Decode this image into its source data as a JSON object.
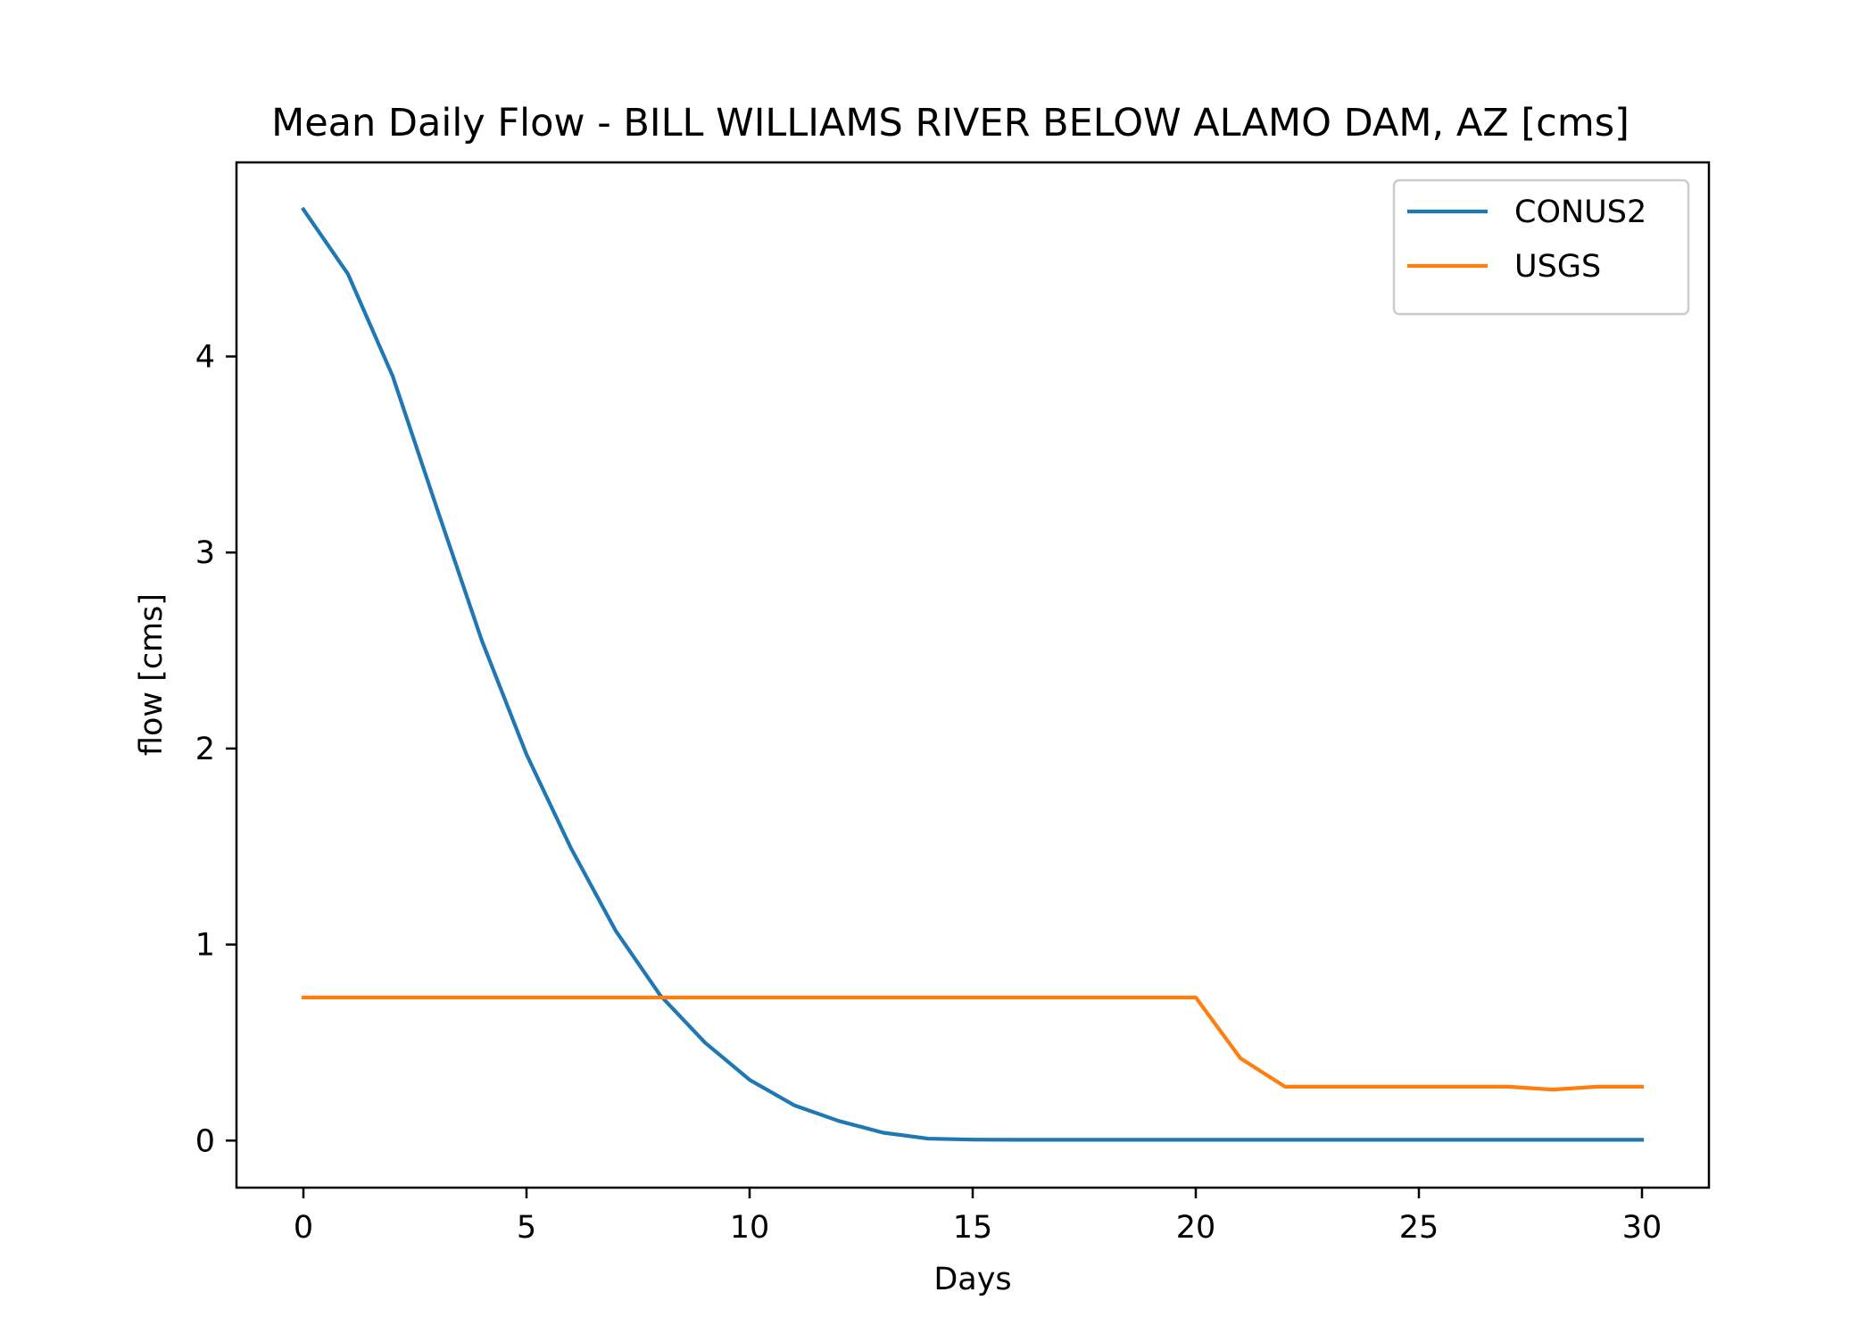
{
  "chart_data": {
    "type": "line",
    "title": "Mean Daily Flow - BILL WILLIAMS RIVER BELOW ALAMO DAM, AZ [cms]",
    "xlabel": "Days",
    "ylabel": "flow [cms]",
    "xlim": [
      -1.5,
      31.5
    ],
    "ylim": [
      -0.24,
      4.99
    ],
    "xticks": [
      0,
      5,
      10,
      15,
      20,
      25,
      30
    ],
    "yticks": [
      0,
      1,
      2,
      3,
      4
    ],
    "xtick_labels": [
      "0",
      "5",
      "10",
      "15",
      "20",
      "25",
      "30"
    ],
    "ytick_labels": [
      "0",
      "1",
      "2",
      "3",
      "4"
    ],
    "grid": false,
    "legend_position": "top-right",
    "x": [
      0,
      1,
      2,
      3,
      4,
      5,
      6,
      7,
      8,
      9,
      10,
      11,
      12,
      13,
      14,
      15,
      16,
      17,
      18,
      19,
      20,
      21,
      22,
      23,
      24,
      25,
      26,
      27,
      28,
      29,
      30
    ],
    "series": [
      {
        "name": "CONUS2",
        "color": "#1f77b4",
        "values": [
          4.75,
          4.42,
          3.9,
          3.22,
          2.55,
          1.97,
          1.49,
          1.07,
          0.74,
          0.5,
          0.31,
          0.18,
          0.1,
          0.04,
          0.01,
          0.005,
          0.004,
          0.004,
          0.004,
          0.004,
          0.004,
          0.004,
          0.004,
          0.004,
          0.004,
          0.004,
          0.004,
          0.004,
          0.004,
          0.004,
          0.004
        ]
      },
      {
        "name": "USGS",
        "color": "#ff7f0e",
        "values": [
          0.73,
          0.73,
          0.73,
          0.73,
          0.73,
          0.73,
          0.73,
          0.73,
          0.73,
          0.73,
          0.73,
          0.73,
          0.73,
          0.73,
          0.73,
          0.73,
          0.73,
          0.73,
          0.73,
          0.73,
          0.73,
          0.42,
          0.275,
          0.275,
          0.275,
          0.275,
          0.275,
          0.275,
          0.26,
          0.275,
          0.275
        ]
      }
    ]
  }
}
